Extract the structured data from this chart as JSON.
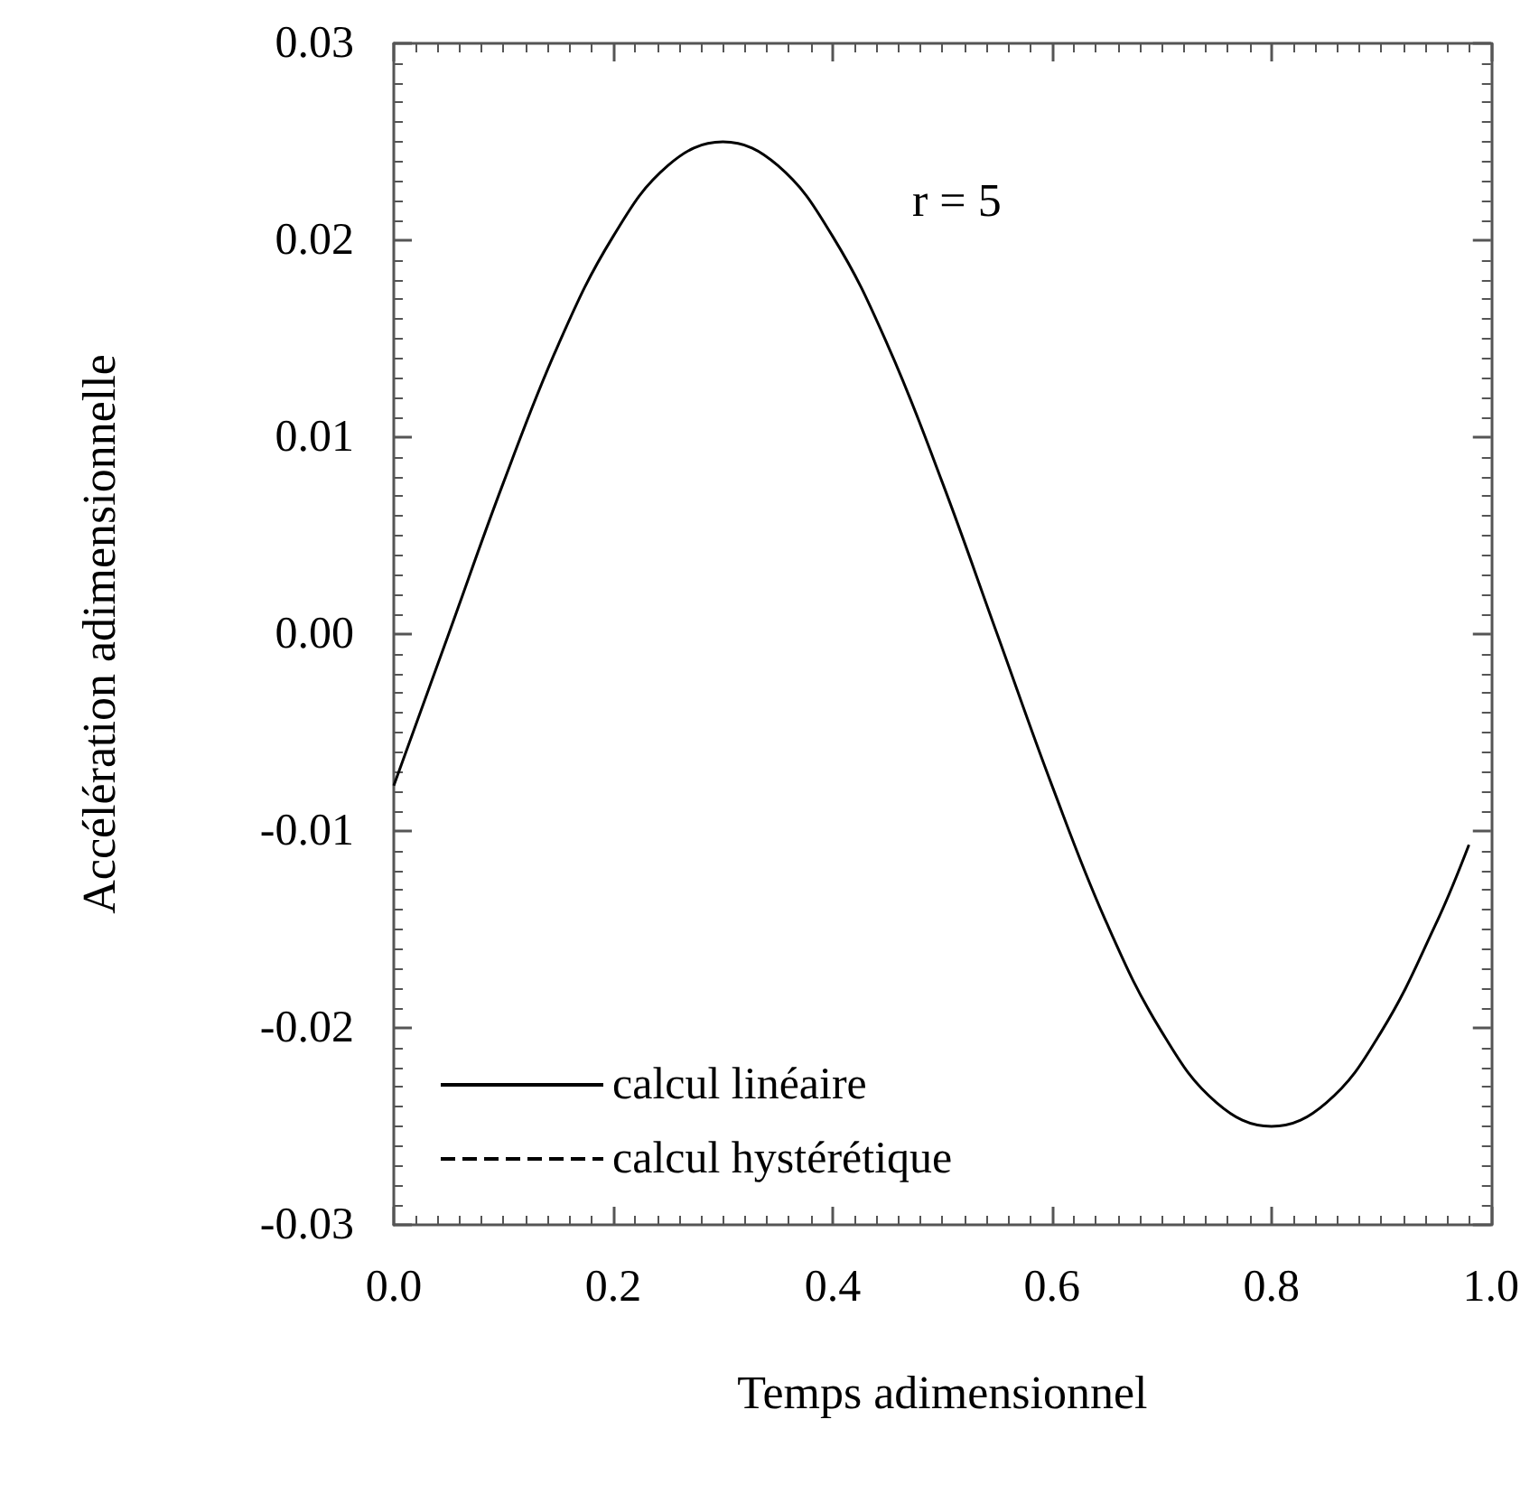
{
  "chart_data": {
    "type": "line",
    "xlabel": "Temps adimensionnel",
    "ylabel": "Accélération adimensionnelle",
    "annotations": [
      "r = 5"
    ],
    "x": [
      0,
      0.05,
      0.1,
      0.15,
      0.2,
      0.25,
      0.3,
      0.35,
      0.4,
      0.45,
      0.5,
      0.55,
      0.6,
      0.65,
      0.7,
      0.75,
      0.8,
      0.85,
      0.9,
      0.95,
      0.98
    ],
    "series": [
      {
        "name": "calcul linéaire",
        "color": "#000000",
        "line_style": "solid",
        "values": [
          -0.0077,
          0,
          0.0077,
          0.0147,
          0.0202,
          0.0238,
          0.025,
          0.0238,
          0.0202,
          0.0147,
          0.0077,
          0,
          -0.0077,
          -0.0147,
          -0.0202,
          -0.0238,
          -0.025,
          -0.0238,
          -0.0202,
          -0.0147,
          -0.0107
        ]
      },
      {
        "name": "calcul hystérétique",
        "color": "#000000",
        "line_style": "dashed",
        "values": [
          null,
          null,
          null,
          null,
          null,
          null,
          null,
          null,
          null,
          null,
          null,
          null,
          null,
          null,
          null,
          null,
          null,
          null,
          null,
          null,
          null
        ]
      }
    ],
    "xlim": [
      0,
      1
    ],
    "xticks": [
      {
        "value": 0,
        "label": "0.0"
      },
      0.2,
      0.4,
      0.6,
      0.8,
      {
        "value": 1,
        "label": "1.0"
      }
    ],
    "ylim": [
      -0.03,
      0.03
    ],
    "yticks": [
      -0.03,
      -0.02,
      -0.01,
      {
        "value": 0,
        "label": "0.00"
      },
      0.01,
      0.02,
      0.03
    ],
    "grid": false,
    "legend": "bottom left",
    "marker": "none"
  }
}
